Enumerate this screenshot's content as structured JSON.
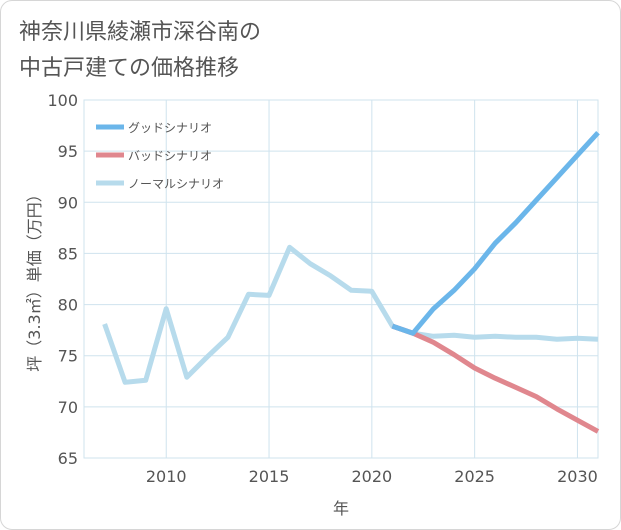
{
  "title_lines": [
    "神奈川県綾瀬市深谷南の",
    "中古戸建ての価格推移"
  ],
  "chart_data": {
    "type": "line",
    "xlabel": "年",
    "ylabel": "坪（3.3㎡）単価（万円）",
    "xlim": [
      2006,
      2031
    ],
    "ylim": [
      65,
      100
    ],
    "x_ticks": [
      2010,
      2015,
      2020,
      2025,
      2030
    ],
    "y_ticks": [
      65,
      70,
      75,
      80,
      85,
      90,
      95,
      100
    ],
    "grid": true,
    "legend_position": "top-left",
    "series": [
      {
        "name": "グッドシナリオ",
        "color": "#6bb6ea",
        "x": [
          2021,
          2022,
          2023,
          2024,
          2025,
          2026,
          2027,
          2028,
          2029,
          2030,
          2031
        ],
        "values": [
          77.9,
          77.2,
          79.6,
          81.4,
          83.5,
          86.0,
          88.0,
          90.2,
          92.4,
          94.6,
          96.8
        ]
      },
      {
        "name": "バッドシナリオ",
        "color": "#e0878e",
        "x": [
          2021,
          2022,
          2023,
          2024,
          2025,
          2026,
          2027,
          2028,
          2029,
          2030,
          2031
        ],
        "values": [
          77.9,
          77.2,
          76.3,
          75.1,
          73.8,
          72.8,
          71.9,
          71.0,
          69.8,
          68.7,
          67.6
        ]
      },
      {
        "name": "ノーマルシナリオ",
        "color": "#b7dbec",
        "x": [
          2007,
          2008,
          2009,
          2010,
          2011,
          2012,
          2013,
          2014,
          2015,
          2016,
          2017,
          2018,
          2019,
          2020,
          2021,
          2022,
          2023,
          2024,
          2025,
          2026,
          2027,
          2028,
          2029,
          2030,
          2031
        ],
        "values": [
          78.1,
          72.4,
          72.6,
          79.6,
          72.9,
          74.9,
          76.8,
          81.0,
          80.9,
          85.6,
          84.0,
          82.8,
          81.4,
          81.3,
          77.9,
          77.2,
          76.9,
          77.0,
          76.8,
          76.9,
          76.8,
          76.8,
          76.6,
          76.7,
          76.6
        ]
      }
    ]
  }
}
